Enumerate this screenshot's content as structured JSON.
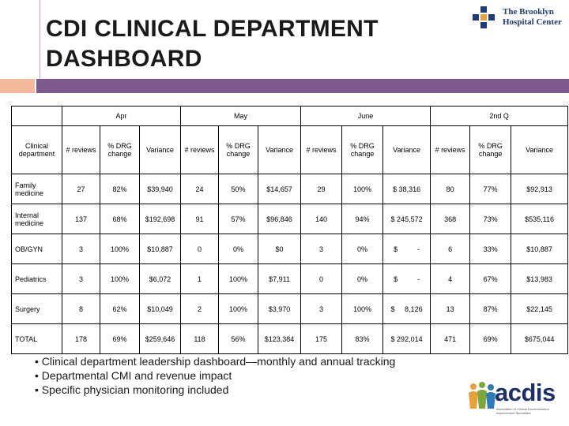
{
  "title_line1": "CDI CLINICAL DEPARTMENT",
  "title_line2": "DASHBOARD",
  "logo": {
    "line1": "The Brooklyn",
    "line2": "Hospital Center"
  },
  "table": {
    "periods": [
      "Apr",
      "May",
      "June",
      "2nd Q"
    ],
    "dept_header": "Clinical department",
    "sub_headers": [
      "# reviews",
      "% DRG change",
      "Variance"
    ],
    "rows": [
      {
        "dept": "Family medicine",
        "cells": [
          "27",
          "82%",
          "$39,940",
          "24",
          "50%",
          "$14,657",
          "29",
          "100%",
          "$ 38,316",
          "80",
          "77%",
          "$92,913"
        ]
      },
      {
        "dept": "Internal medicine",
        "cells": [
          "137",
          "68%",
          "$192,698",
          "91",
          "57%",
          "$96,846",
          "140",
          "94%",
          "$ 245,572",
          "368",
          "73%",
          "$535,116"
        ]
      },
      {
        "dept": "OB/GYN",
        "cells": [
          "3",
          "100%",
          "$10,887",
          "0",
          "0%",
          "$0",
          "3",
          "0%",
          "$          -",
          "6",
          "33%",
          "$10,887"
        ]
      },
      {
        "dept": "Pediatrics",
        "cells": [
          "3",
          "100%",
          "$6,072",
          "1",
          "100%",
          "$7,911",
          "0",
          "0%",
          "$          -",
          "4",
          "67%",
          "$13,983"
        ]
      },
      {
        "dept": "Surgery",
        "cells": [
          "8",
          "62%",
          "$10,049",
          "2",
          "100%",
          "$3,970",
          "3",
          "100%",
          "$     8,126",
          "13",
          "87%",
          "$22,145"
        ]
      },
      {
        "dept": "TOTAL",
        "cells": [
          "178",
          "69%",
          "$259,646",
          "118",
          "56%",
          "$123,384",
          "175",
          "83%",
          "$ 292,014",
          "471",
          "69%",
          "$675,044"
        ]
      }
    ]
  },
  "bullets": [
    "Clinical department leadership dashboard—monthly and annual tracking",
    "Departmental CMI and revenue impact",
    "Specific physician monitoring included"
  ],
  "acdis": {
    "word": "acdis",
    "tagline": "Association of Clinical Documentation Improvement Specialists"
  },
  "colors": {
    "accent_purple": "#7d5a8c",
    "accent_orange": "#f3b99a",
    "logo_blue": "#1f3b7a"
  }
}
